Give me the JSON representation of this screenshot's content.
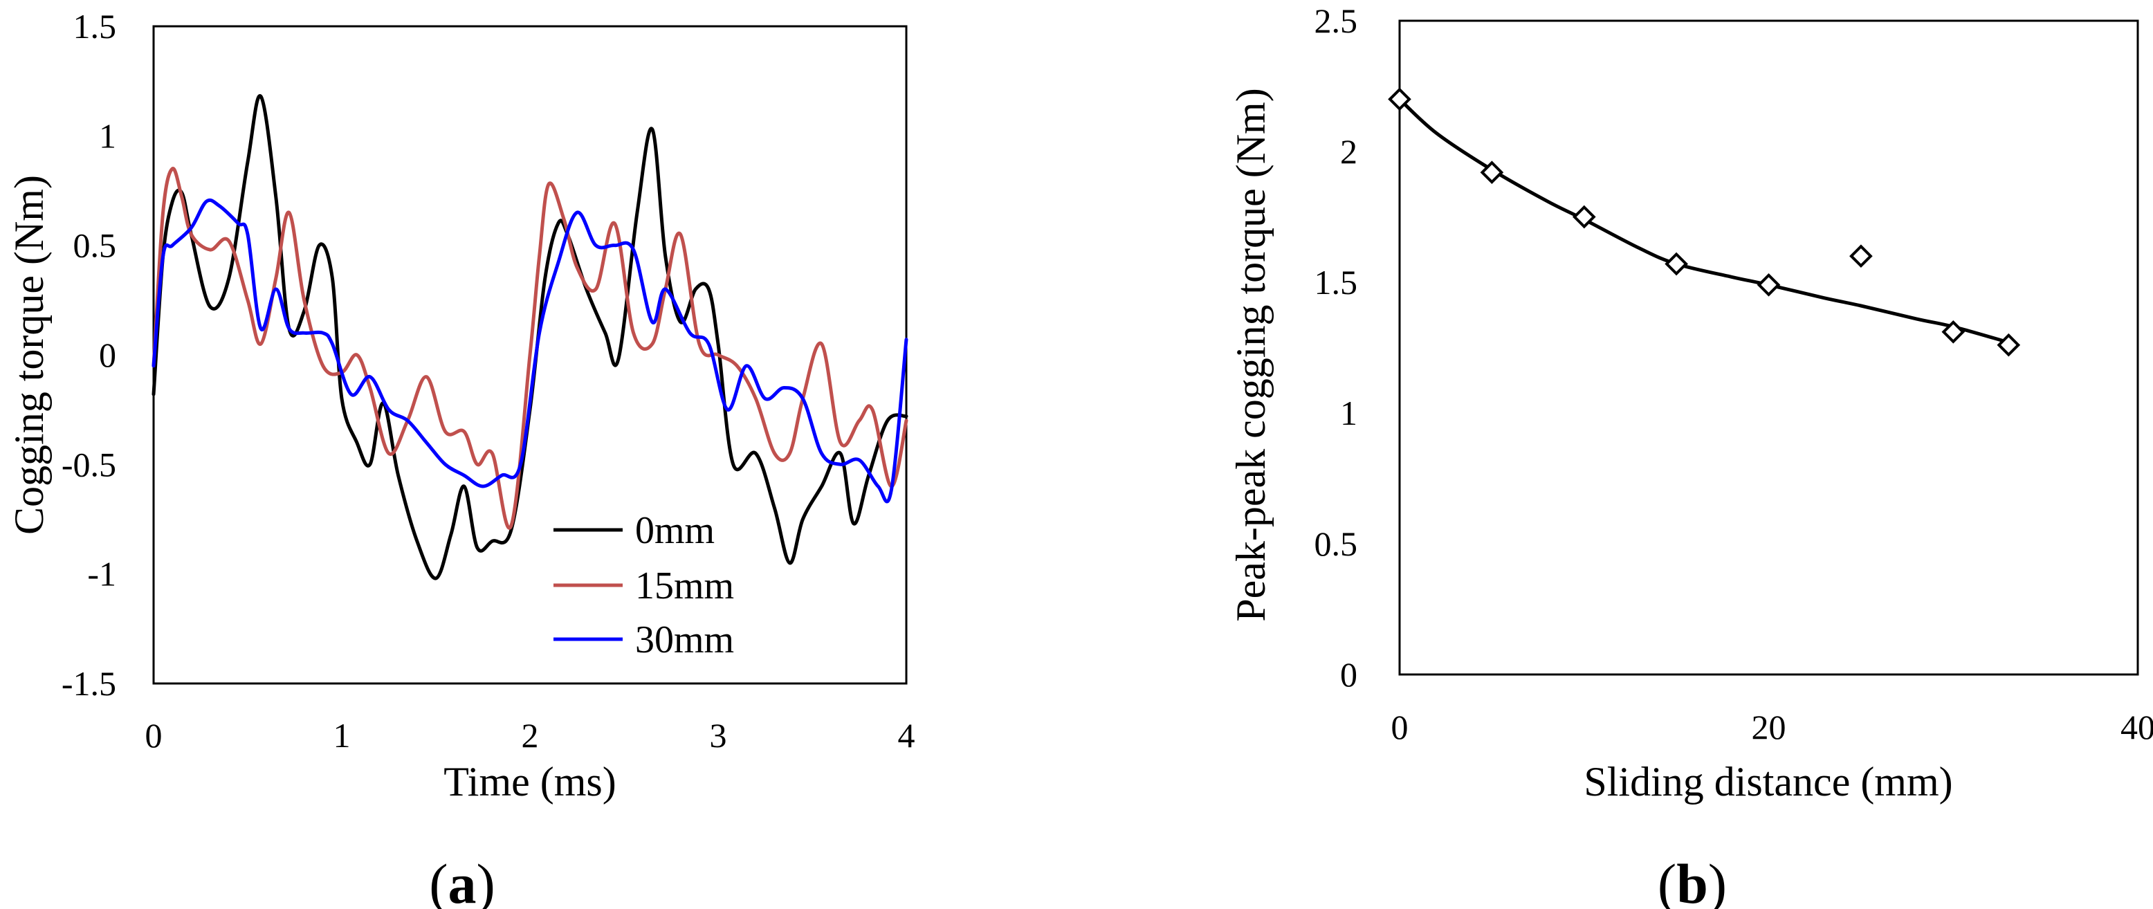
{
  "panels": [
    {
      "open": "(",
      "letter": "a",
      "close": ")"
    },
    {
      "open": "(",
      "letter": "b",
      "close": ")"
    }
  ],
  "chart_data": [
    {
      "type": "line",
      "xlabel": "Time (ms)",
      "ylabel": "Cogging torque (Nm)",
      "xlim": [
        0,
        4
      ],
      "ylim": [
        -1.5,
        1.5
      ],
      "x_ticks": [
        "0",
        "1",
        "2",
        "3",
        "4"
      ],
      "y_ticks": [
        "-1.5",
        "-1",
        "-0.5",
        "0",
        "0.5",
        "1",
        "1.5"
      ],
      "grid": false,
      "legend_position": "lower-right",
      "series": [
        {
          "name": "0mm",
          "color": "#000000",
          "x": [
            0,
            0.05,
            0.1,
            0.15,
            0.2,
            0.3,
            0.4,
            0.5,
            0.57,
            0.65,
            0.72,
            0.8,
            0.88,
            0.95,
            1.0,
            1.08,
            1.15,
            1.22,
            1.3,
            1.4,
            1.5,
            1.58,
            1.65,
            1.72,
            1.8,
            1.9,
            2.0,
            2.08,
            2.15,
            2.2,
            2.3,
            2.4,
            2.47,
            2.57,
            2.65,
            2.72,
            2.8,
            2.88,
            2.95,
            3.0,
            3.08,
            3.2,
            3.3,
            3.38,
            3.45,
            3.55,
            3.65,
            3.72,
            3.8,
            3.9,
            4.0
          ],
          "values": [
            -0.18,
            0.45,
            0.7,
            0.74,
            0.55,
            0.22,
            0.35,
            0.88,
            1.18,
            0.72,
            0.12,
            0.2,
            0.5,
            0.35,
            -0.2,
            -0.4,
            -0.5,
            -0.22,
            -0.55,
            -0.85,
            -1.02,
            -0.82,
            -0.6,
            -0.88,
            -0.85,
            -0.8,
            -0.25,
            0.35,
            0.6,
            0.55,
            0.3,
            0.1,
            -0.02,
            0.65,
            1.03,
            0.45,
            0.15,
            0.3,
            0.3,
            0.05,
            -0.5,
            -0.45,
            -0.7,
            -0.95,
            -0.75,
            -0.6,
            -0.45,
            -0.77,
            -0.55,
            -0.3,
            -0.28
          ]
        },
        {
          "name": "15mm",
          "color": "#c0504d",
          "x": [
            0,
            0.05,
            0.1,
            0.15,
            0.2,
            0.3,
            0.4,
            0.5,
            0.57,
            0.65,
            0.72,
            0.8,
            0.9,
            1.0,
            1.08,
            1.15,
            1.25,
            1.35,
            1.45,
            1.55,
            1.65,
            1.72,
            1.8,
            1.9,
            2.0,
            2.05,
            2.1,
            2.18,
            2.25,
            2.35,
            2.45,
            2.55,
            2.65,
            2.72,
            2.8,
            2.9,
            3.0,
            3.1,
            3.2,
            3.3,
            3.38,
            3.45,
            3.55,
            3.65,
            3.75,
            3.82,
            3.92,
            4.0
          ],
          "values": [
            -0.05,
            0.65,
            0.85,
            0.72,
            0.55,
            0.48,
            0.52,
            0.25,
            0.05,
            0.35,
            0.65,
            0.25,
            -0.05,
            -0.08,
            0.0,
            -0.15,
            -0.45,
            -0.3,
            -0.1,
            -0.35,
            -0.35,
            -0.5,
            -0.45,
            -0.78,
            0.0,
            0.45,
            0.78,
            0.62,
            0.4,
            0.3,
            0.6,
            0.1,
            0.05,
            0.3,
            0.55,
            0.05,
            0.0,
            -0.05,
            -0.2,
            -0.45,
            -0.45,
            -0.2,
            0.05,
            -0.4,
            -0.3,
            -0.25,
            -0.6,
            -0.3
          ]
        },
        {
          "name": "30mm",
          "color": "#0000ff",
          "x": [
            0,
            0.05,
            0.1,
            0.2,
            0.28,
            0.35,
            0.45,
            0.5,
            0.57,
            0.65,
            0.72,
            0.8,
            0.9,
            0.95,
            1.05,
            1.15,
            1.25,
            1.35,
            1.45,
            1.55,
            1.65,
            1.75,
            1.85,
            1.95,
            2.05,
            2.15,
            2.25,
            2.35,
            2.45,
            2.55,
            2.65,
            2.72,
            2.85,
            2.95,
            3.05,
            3.15,
            3.25,
            3.35,
            3.45,
            3.55,
            3.65,
            3.75,
            3.85,
            3.92,
            4.0
          ],
          "values": [
            -0.05,
            0.45,
            0.5,
            0.58,
            0.7,
            0.68,
            0.6,
            0.55,
            0.12,
            0.3,
            0.12,
            0.1,
            0.1,
            0.05,
            -0.18,
            -0.1,
            -0.25,
            -0.3,
            -0.4,
            -0.5,
            -0.55,
            -0.6,
            -0.55,
            -0.5,
            0.1,
            0.42,
            0.65,
            0.5,
            0.5,
            0.48,
            0.15,
            0.3,
            0.1,
            0.05,
            -0.25,
            -0.05,
            -0.2,
            -0.15,
            -0.2,
            -0.45,
            -0.5,
            -0.48,
            -0.6,
            -0.62,
            0.07
          ]
        }
      ]
    },
    {
      "type": "scatter",
      "xlabel": "Sliding distance (mm)",
      "ylabel": "Peak-peak cogging torque (Nm)",
      "xlim": [
        0,
        40
      ],
      "ylim": [
        0,
        2.5
      ],
      "x_ticks": [
        "0",
        "20",
        "40"
      ],
      "y_ticks": [
        "0",
        "0.5",
        "1",
        "1.5",
        "2",
        "2.5"
      ],
      "grid": false,
      "series": [
        {
          "marker": "diamond",
          "color": "#000000",
          "x": [
            0,
            5,
            10,
            15,
            20,
            25,
            30,
            33
          ],
          "values": [
            2.2,
            1.92,
            1.75,
            1.57,
            1.49,
            1.6,
            1.31,
            1.26
          ]
        }
      ],
      "trendline": {
        "color": "#000000",
        "x": [
          0,
          2,
          5,
          8,
          10,
          13,
          15,
          18,
          20,
          23,
          25,
          28,
          30,
          33
        ],
        "values": [
          2.2,
          2.07,
          1.93,
          1.81,
          1.74,
          1.63,
          1.57,
          1.52,
          1.49,
          1.44,
          1.41,
          1.36,
          1.33,
          1.27
        ]
      }
    }
  ]
}
